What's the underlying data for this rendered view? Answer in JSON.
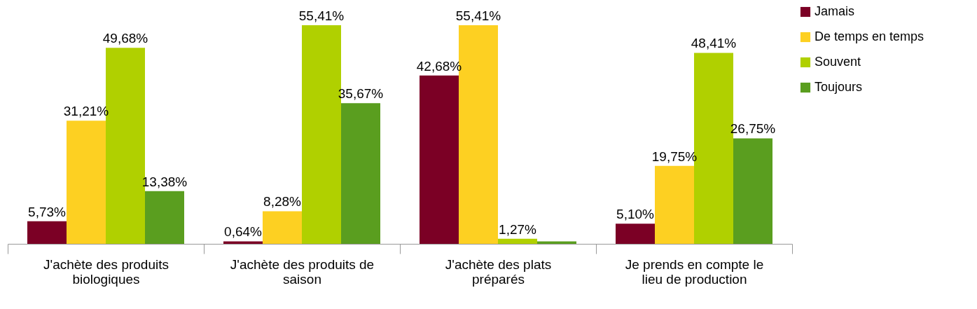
{
  "chart_data": {
    "type": "bar",
    "categories": [
      "J'achète des produits biologiques",
      "J'achète des produits de saison",
      "J'achète des plats préparés",
      "Je prends en compte le lieu de production"
    ],
    "series": [
      {
        "name": "Jamais",
        "color": "#7b0025",
        "values": [
          5.73,
          0.64,
          42.68,
          5.1
        ],
        "value_labels": [
          "5,73%",
          "0,64%",
          "42,68%",
          "5,10%"
        ]
      },
      {
        "name": "De temps en temps",
        "color": "#fdd022",
        "values": [
          31.21,
          8.28,
          55.41,
          19.75
        ],
        "value_labels": [
          "31,21%",
          "8,28%",
          "55,41%",
          "19,75%"
        ]
      },
      {
        "name": "Souvent",
        "color": "#b0d000",
        "values": [
          49.68,
          55.41,
          1.27,
          48.41
        ],
        "value_labels": [
          "49,68%",
          "55,41%",
          "1,27%",
          "48,41%"
        ]
      },
      {
        "name": "Toujours",
        "color": "#5a9e1f",
        "values": [
          13.38,
          35.67,
          0.64,
          26.75
        ],
        "value_labels": [
          "13,38%",
          "35,67%",
          null,
          "26,75%"
        ]
      }
    ],
    "legend": "right"
  }
}
